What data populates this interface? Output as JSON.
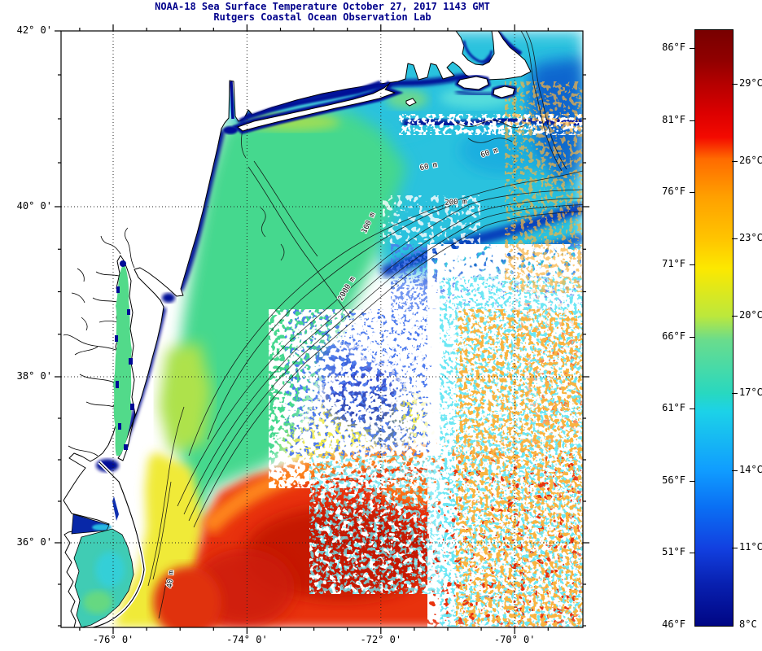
{
  "title": {
    "line1": "NOAA-18 Sea Surface Temperature October 27, 2017 1143 GMT",
    "line2": "Rutgers Coastal Ocean Observation Lab",
    "color": "#00008B"
  },
  "map": {
    "x_ticks": [
      {
        "value": -76,
        "label": "-76° 0'"
      },
      {
        "value": -74,
        "label": "-74° 0'"
      },
      {
        "value": -72,
        "label": "-72° 0'"
      },
      {
        "value": -70,
        "label": "-70° 0'"
      }
    ],
    "y_ticks": [
      {
        "value": 42,
        "label": "42° 0'"
      },
      {
        "value": 40,
        "label": "40° 0'"
      },
      {
        "value": 38,
        "label": "38° 0'"
      },
      {
        "value": 36,
        "label": "36° 0'"
      }
    ],
    "contour_labels": [
      "60 m",
      "60 m",
      "200 m",
      "100 m",
      "2000 m",
      "40 m"
    ]
  },
  "colorbar": {
    "fahrenheit_ticks": [
      {
        "value": 86,
        "label": "86°F"
      },
      {
        "value": 81,
        "label": "81°F"
      },
      {
        "value": 76,
        "label": "76°F"
      },
      {
        "value": 71,
        "label": "71°F"
      },
      {
        "value": 66,
        "label": "66°F"
      },
      {
        "value": 61,
        "label": "61°F"
      },
      {
        "value": 56,
        "label": "56°F"
      },
      {
        "value": 51,
        "label": "51°F"
      },
      {
        "value": 46,
        "label": "46°F"
      }
    ],
    "celsius_ticks": [
      {
        "value": 29,
        "label": "29°C"
      },
      {
        "value": 26,
        "label": "26°C"
      },
      {
        "value": 23,
        "label": "23°C"
      },
      {
        "value": 20,
        "label": "20°C"
      },
      {
        "value": 17,
        "label": "17°C"
      },
      {
        "value": 14,
        "label": "14°C"
      },
      {
        "value": 11,
        "label": "11°C"
      },
      {
        "value": 8,
        "label": "8°C"
      }
    ],
    "gradient_stops": [
      {
        "pct": 0,
        "color": "#780000"
      },
      {
        "pct": 5,
        "color": "#900000"
      },
      {
        "pct": 9,
        "color": "#B40000"
      },
      {
        "pct": 14,
        "color": "#DC0000"
      },
      {
        "pct": 18,
        "color": "#F40A00"
      },
      {
        "pct": 21.6,
        "color": "#FF6A00"
      },
      {
        "pct": 28,
        "color": "#FFA000"
      },
      {
        "pct": 35,
        "color": "#FFC400"
      },
      {
        "pct": 40,
        "color": "#FCE800"
      },
      {
        "pct": 48,
        "color": "#BCE83C"
      },
      {
        "pct": 52,
        "color": "#6ADC8C"
      },
      {
        "pct": 61,
        "color": "#28D8C0"
      },
      {
        "pct": 64,
        "color": "#1CD2E8"
      },
      {
        "pct": 74,
        "color": "#109CFF"
      },
      {
        "pct": 80,
        "color": "#0A70F4"
      },
      {
        "pct": 87,
        "color": "#1240E0"
      },
      {
        "pct": 93,
        "color": "#0820B0"
      },
      {
        "pct": 100,
        "color": "#000684"
      }
    ]
  },
  "chart_data": {
    "type": "heatmap",
    "title": "NOAA-18 Sea Surface Temperature October 27, 2017 1143 GMT",
    "subtitle": "Rutgers Coastal Ocean Observation Lab",
    "x_axis": {
      "tick_values_deg_lon": [
        -76,
        -74,
        -72,
        -70
      ],
      "range_deg_lon": [
        -76.78,
        -68.98
      ],
      "minor_tick_step_deg": 0.5
    },
    "y_axis": {
      "tick_values_deg_lat": [
        42,
        40,
        38,
        36
      ],
      "range_deg_lat": [
        35.0,
        42.0
      ],
      "minor_tick_step_deg": 0.5
    },
    "grid": "dotted graticule at labeled ticks",
    "colorbar": {
      "celsius_tick_values": [
        29,
        26,
        23,
        20,
        17,
        14,
        11,
        8
      ],
      "fahrenheit_tick_values": [
        86,
        81,
        76,
        71,
        66,
        61,
        56,
        51,
        46
      ],
      "range_c": [
        8,
        31
      ],
      "colormap": "jet-like (dark red high to navy low)"
    },
    "bathymetry_contour_labels": [
      "60 m",
      "60 m",
      "200 m",
      "100 m",
      "2000 m",
      "40 m"
    ],
    "features": [
      {
        "region": "Long Island Sound, Hudson River, nearshore NJ/Long Island/New England/Delmarva",
        "approx_temp_c": "8-12",
        "appearance": "dark navy coastal bands"
      },
      {
        "region": "Mid-Atlantic Bight shelf (NJ to Chesapeake)",
        "approx_temp_c": "18-20",
        "appearance": "green"
      },
      {
        "region": "Southern New England shelf / around Cape Cod, Martha's Vineyard, Nantucket",
        "approx_temp_c": "14-17",
        "appearance": "cyan with navy shelf-front bands"
      },
      {
        "region": "Nearshore North Carolina / Virginia coastal band",
        "approx_temp_c": "21-23",
        "appearance": "yellow"
      },
      {
        "region": "Gulf Stream south of 36.5N extending east",
        "approx_temp_c": "25-29",
        "appearance": "red-orange warm mass"
      },
      {
        "region": "Central and eastern offshore areas",
        "approx_temp_c": "no data",
        "appearance": "white cloud-masked speckle"
      },
      {
        "region": "Mid-shelf cold pool patch near 38.5N 72.5W",
        "approx_temp_c": "10-13",
        "appearance": "blue mottled patch"
      }
    ]
  }
}
